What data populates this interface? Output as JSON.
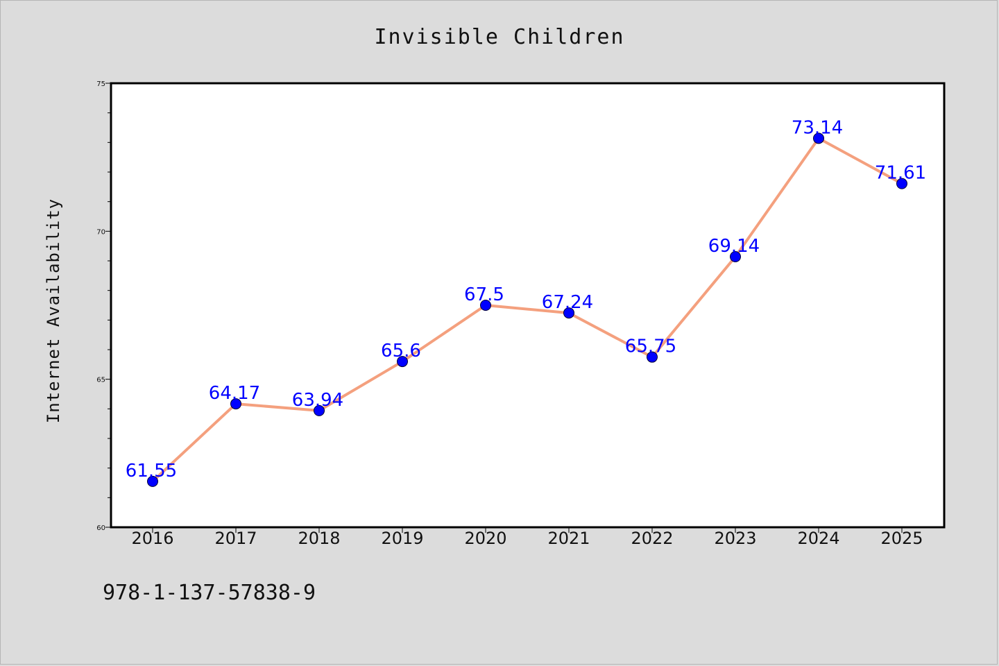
{
  "chart_data": {
    "type": "line",
    "title": "Invisible Children",
    "xlabel": "",
    "ylabel": "Internet Availability",
    "categories": [
      "2016",
      "2017",
      "2018",
      "2019",
      "2020",
      "2021",
      "2022",
      "2023",
      "2024",
      "2025"
    ],
    "series": [
      {
        "values": [
          61.55,
          64.17,
          63.94,
          65.6,
          67.5,
          67.24,
          65.75,
          69.14,
          73.14,
          71.61
        ],
        "data_labels": [
          "61.55",
          "64.17",
          "63.94",
          "65.6",
          "67.5",
          "67.24",
          "65.75",
          "69.14",
          "73.14",
          "71.61"
        ],
        "line_color": "#f4a07e",
        "marker_color": "#0000ff"
      }
    ],
    "ylim": [
      60,
      75
    ],
    "yticks": [
      "60",
      "65",
      "70",
      "75"
    ],
    "grid": false,
    "legend": "none"
  },
  "footer_text": "978-1-137-57838-9",
  "colors": {
    "background": "#dcdcdc",
    "plot_background": "#ffffff",
    "line": "#f4a07e",
    "marker": "#0000ff",
    "data_label": "#0000ff"
  }
}
